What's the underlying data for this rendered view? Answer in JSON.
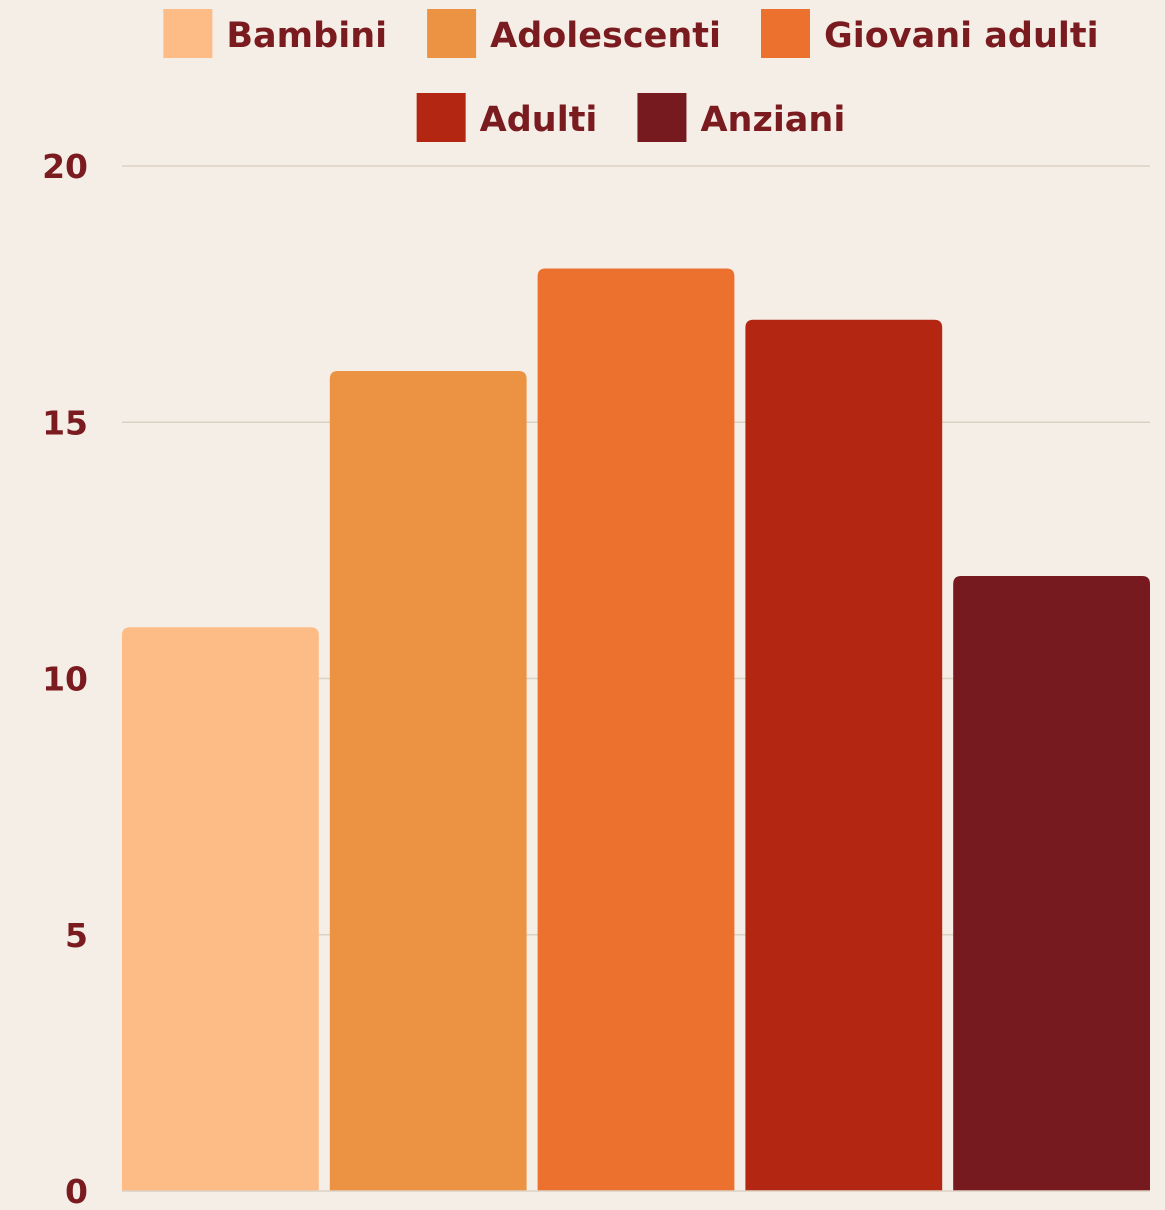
{
  "chart_data": {
    "type": "bar",
    "title": "",
    "xlabel": "",
    "ylabel": "",
    "ylim": [
      0,
      20
    ],
    "yticks": [
      0,
      5,
      10,
      15,
      20
    ],
    "grid": true,
    "legend_position": "top",
    "series": [
      {
        "name": "Bambini",
        "values": [
          11
        ],
        "color": "#fdbc86"
      },
      {
        "name": "Adolescenti",
        "values": [
          16
        ],
        "color": "#ec9343"
      },
      {
        "name": "Giovani adulti",
        "values": [
          18
        ],
        "color": "#ec712e"
      },
      {
        "name": "Adulti",
        "values": [
          17
        ],
        "color": "#b32712"
      },
      {
        "name": "Anziani",
        "values": [
          12
        ],
        "color": "#761a1f"
      }
    ]
  },
  "colors": {
    "background": "#f5eee7",
    "text": "#7a1b1f",
    "gridline": "#dcd2c3"
  }
}
